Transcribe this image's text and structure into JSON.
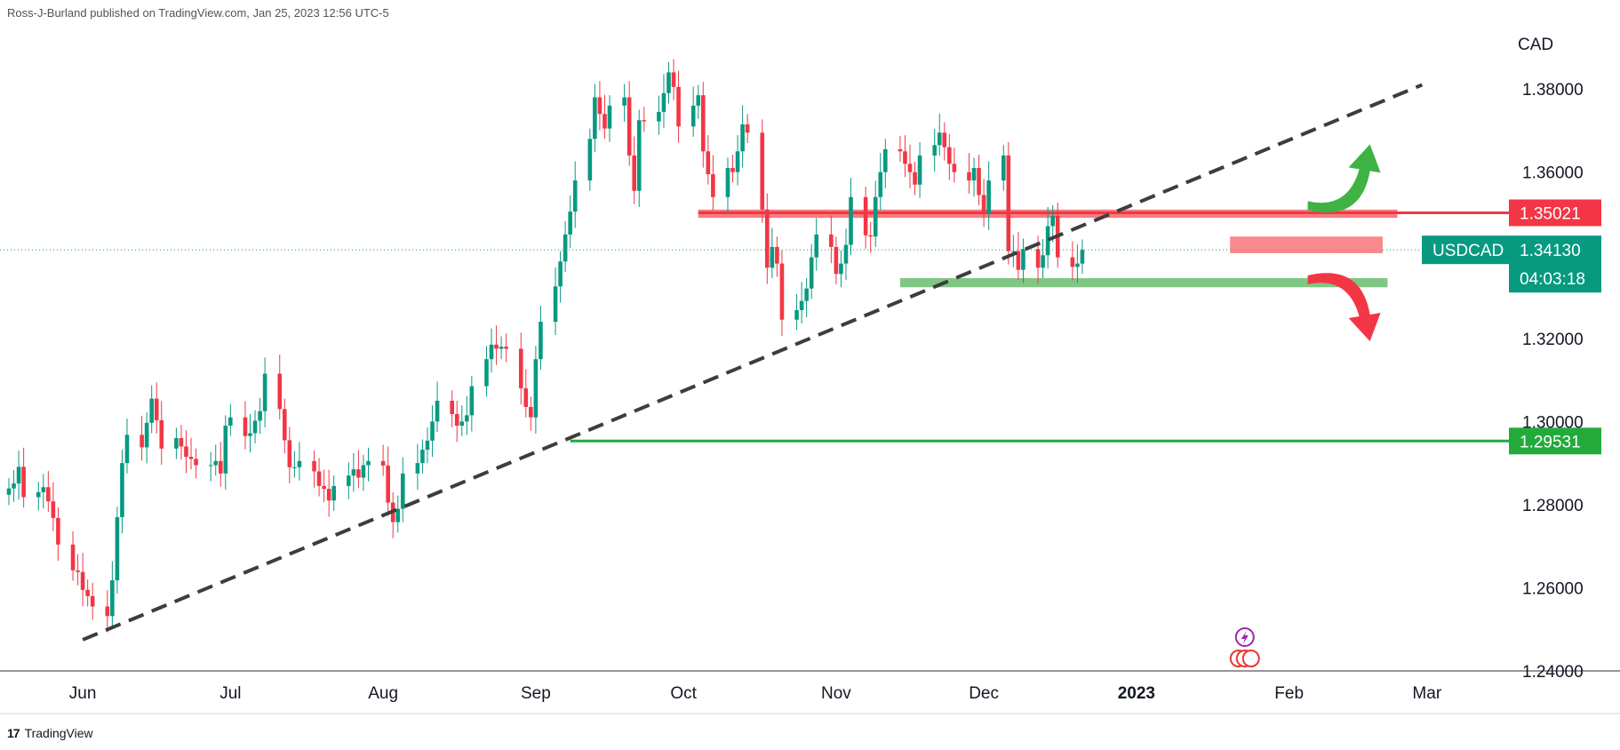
{
  "header": {
    "publisher_line": "Ross-J-Burland published on TradingView.com, Jan 25, 2023 12:56 UTC-5"
  },
  "footer": {
    "brand": "TradingView",
    "logo_glyph": "17"
  },
  "chart_data": {
    "type": "candlestick",
    "symbol": "USDCAD",
    "currency_label": "CAD",
    "y_ticks": [
      1.38,
      1.36,
      1.32,
      1.3,
      1.28,
      1.26,
      1.24
    ],
    "y_tick_labels": [
      "1.38000",
      "1.36000",
      "1.32000",
      "1.30000",
      "1.28000",
      "1.26000",
      "1.24000"
    ],
    "ylim": [
      1.24,
      1.395
    ],
    "x_labels": [
      {
        "text": "Jun",
        "date": "2022-06-01",
        "bold": false
      },
      {
        "text": "Jul",
        "date": "2022-07-01",
        "bold": false
      },
      {
        "text": "Aug",
        "date": "2022-08-01",
        "bold": false
      },
      {
        "text": "Sep",
        "date": "2022-09-01",
        "bold": false
      },
      {
        "text": "Oct",
        "date": "2022-10-01",
        "bold": false
      },
      {
        "text": "Nov",
        "date": "2022-11-01",
        "bold": false
      },
      {
        "text": "Dec",
        "date": "2022-12-01",
        "bold": false
      },
      {
        "text": "2023",
        "date": "2023-01-01",
        "bold": true
      },
      {
        "text": "Feb",
        "date": "2023-02-01",
        "bold": false
      },
      {
        "text": "Mar",
        "date": "2023-03-01",
        "bold": false
      }
    ],
    "x_range": [
      "2022-05-17",
      "2023-03-18"
    ],
    "candle_closes": [
      1.2839,
      1.2851,
      1.2891,
      1.2818,
      1.283,
      1.2842,
      1.2808,
      1.2768,
      1.2704,
      1.2642,
      1.2638,
      1.2595,
      1.258,
      1.2555,
      1.2532,
      1.2618,
      1.277,
      1.29,
      1.2968,
      1.2938,
      1.2997,
      1.3055,
      1.3003,
      1.2935,
      1.296,
      1.294,
      1.2915,
      1.291,
      1.2895,
      1.2895,
      1.2905,
      1.2875,
      1.299,
      1.301,
      1.2965,
      1.2972,
      1.3002,
      1.3025,
      1.3115,
      1.303,
      1.2955,
      1.289,
      1.289,
      1.2905,
      1.288,
      1.2845,
      1.2838,
      1.281,
      1.2845,
      1.287,
      1.2885,
      1.2865,
      1.2895,
      1.2905,
      1.2894,
      1.2805,
      1.2758,
      1.279,
      1.2875,
      1.29,
      1.2932,
      1.2954,
      1.3,
      1.305,
      1.3018,
      1.299,
      1.3,
      1.3015,
      1.3085,
      1.315,
      1.3185,
      1.3175,
      1.318,
      1.3175,
      1.308,
      1.3035,
      1.301,
      1.315,
      1.324,
      1.3325,
      1.3385,
      1.345,
      1.3505,
      1.358,
      1.368,
      1.378,
      1.374,
      1.3705,
      1.376,
      1.378,
      1.364,
      1.3555,
      1.3725,
      1.3722,
      1.3745,
      1.379,
      1.384,
      1.3805,
      1.371,
      1.376,
      1.3785,
      1.365,
      1.3595,
      1.354,
      1.361,
      1.36,
      1.365,
      1.3715,
      1.3695,
      1.351,
      1.337,
      1.342,
      1.338,
      1.3245,
      1.3268,
      1.329,
      1.332,
      1.3395,
      1.345,
      1.342,
      1.3355,
      1.338,
      1.3425,
      1.354,
      1.3448,
      1.3445,
      1.354,
      1.36,
      1.3655,
      1.365,
      1.362,
      1.36,
      1.357,
      1.364,
      1.3665,
      1.3695,
      1.366,
      1.362,
      1.36,
      1.358,
      1.361,
      1.3545,
      1.35,
      1.358,
      1.364,
      1.341,
      1.341,
      1.3365,
      1.3415,
      1.337,
      1.34,
      1.347,
      1.3495,
      1.3395,
      1.3372,
      1.338,
      1.3413
    ],
    "trendline": {
      "style": "dashed",
      "color": "#3d3d3d",
      "points": [
        {
          "date": "2022-06-01",
          "value": 1.2475
        },
        {
          "date": "2023-02-28",
          "value": 1.381
        }
      ]
    },
    "zones": [
      {
        "name": "Resistance zone",
        "from": "2022-10-04",
        "to": "2023-02-23",
        "low": 1.349,
        "high": 1.351,
        "color": "#f77c80",
        "opacity": 1
      },
      {
        "name": "Recent high zone",
        "from": "2023-01-20",
        "to": "2023-02-20",
        "low": 1.3405,
        "high": 1.3445,
        "color": "#f77c80",
        "opacity": 0.9
      },
      {
        "name": "Support zone",
        "from": "2022-11-14",
        "to": "2023-02-21",
        "low": 1.3323,
        "high": 1.3345,
        "color": "#81c784",
        "opacity": 1
      }
    ],
    "levels": [
      {
        "label": "1.35021",
        "value": 1.35021,
        "from": "2022-10-04",
        "color": "#f23645"
      },
      {
        "label": "1.29531",
        "value": 1.29531,
        "from": "2022-09-08",
        "color": "#22ab3b"
      }
    ],
    "current_price": {
      "label": "1.34130",
      "value": 1.3413,
      "countdown": "04:03:18",
      "color": "#089981"
    },
    "arrows": [
      {
        "direction": "up",
        "color": "#3eb243",
        "date": "2023-02-12",
        "value": 1.356
      },
      {
        "direction": "down",
        "color": "#f23645",
        "date": "2023-02-12",
        "value": 1.33
      }
    ],
    "event_icons": [
      {
        "kind": "lightning",
        "color": "#9c27b0",
        "date": "2023-01-23"
      },
      {
        "kind": "canada-flags",
        "color": "#e53935",
        "date": "2023-01-23"
      }
    ]
  }
}
